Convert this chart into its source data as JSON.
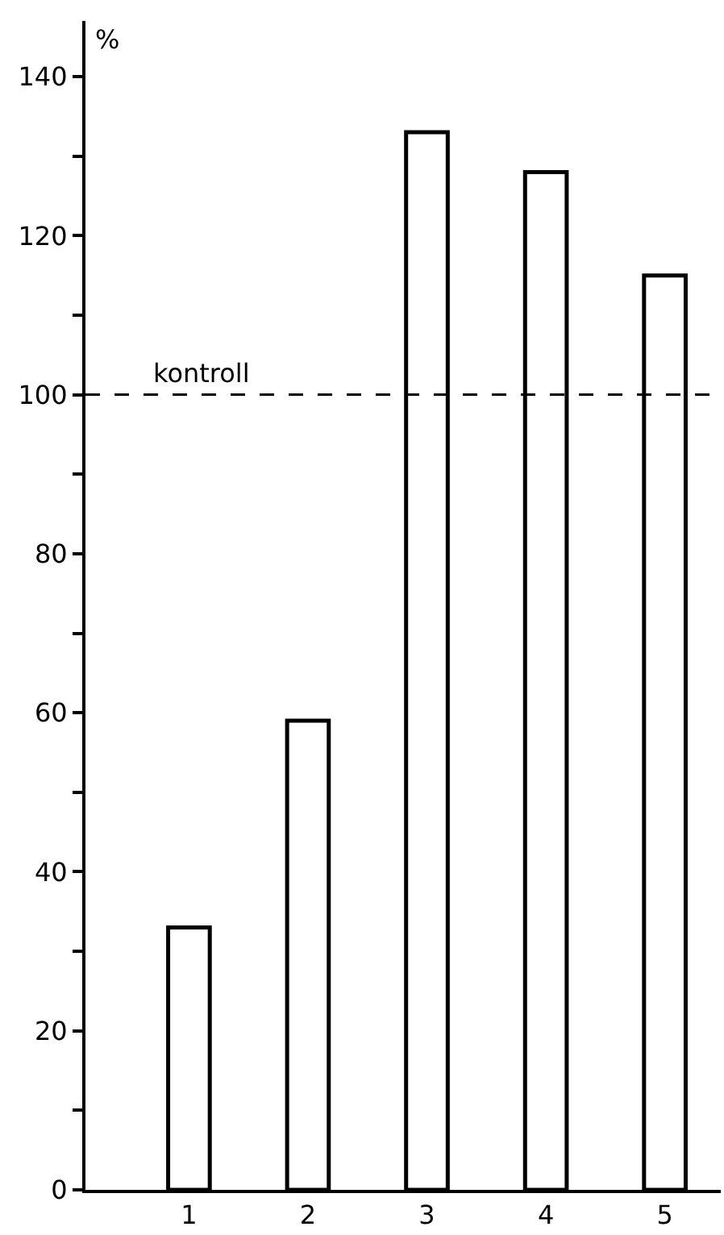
{
  "chart_data": {
    "type": "bar",
    "ylabel": "%",
    "categories": [
      "1",
      "2",
      "3",
      "4",
      "5"
    ],
    "values": [
      33,
      59,
      133,
      128,
      115
    ],
    "color": "#ffffff",
    "ylim": [
      0,
      147
    ],
    "yticks": [
      0,
      {
        "value": 10,
        "label": null
      },
      20,
      {
        "value": 30,
        "label": null
      },
      40,
      {
        "value": 50,
        "label": null
      },
      60,
      {
        "value": 70,
        "label": null
      },
      80,
      {
        "value": 90,
        "label": null
      },
      100,
      {
        "value": 110,
        "label": null
      },
      120,
      {
        "value": 130,
        "label": null
      },
      140
    ],
    "ref_lines": [
      {
        "axis": "y",
        "value": 100,
        "label": "kontroll",
        "line_style": "dashed",
        "color": "#000000"
      }
    ],
    "grid": false
  }
}
